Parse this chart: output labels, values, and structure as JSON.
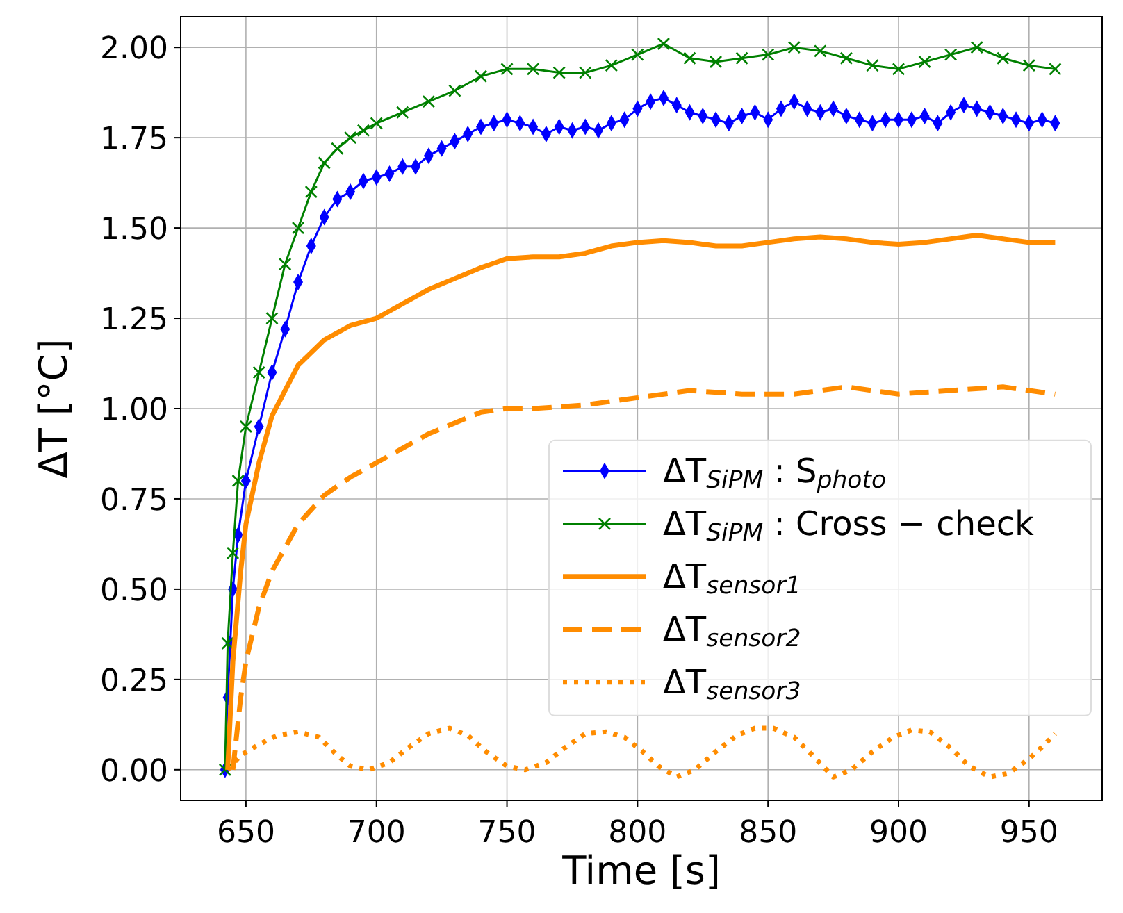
{
  "chart_data": {
    "type": "line",
    "xlabel": "Time [s]",
    "ylabel": "ΔT [°C]",
    "xlim": [
      625,
      978
    ],
    "ylim": [
      -0.085,
      2.085
    ],
    "xticks": [
      650,
      700,
      750,
      800,
      850,
      900,
      950
    ],
    "yticks": [
      {
        "value": 0,
        "label": "0.00"
      },
      {
        "value": 0.25,
        "label": "0.25"
      },
      {
        "value": 0.5,
        "label": "0.50"
      },
      {
        "value": 0.75,
        "label": "0.75"
      },
      {
        "value": 1,
        "label": "1.00"
      },
      {
        "value": 1.25,
        "label": "1.25"
      },
      {
        "value": 1.5,
        "label": "1.50"
      },
      {
        "value": 1.75,
        "label": "1.75"
      },
      {
        "value": 2,
        "label": "2.00"
      }
    ],
    "grid": true,
    "legend": "bottom right",
    "series": [
      {
        "name": "ΔT$_{SiPM}$ : S$_{photo}$",
        "color": "#0000ff",
        "marker": "diamond",
        "line_style": "solid",
        "x": [
          642,
          643,
          644,
          645,
          647,
          650,
          655,
          660,
          665,
          670,
          675,
          680,
          685,
          690,
          695,
          700,
          705,
          710,
          715,
          720,
          725,
          730,
          735,
          740,
          745,
          750,
          755,
          760,
          765,
          770,
          775,
          780,
          785,
          790,
          795,
          800,
          805,
          810,
          815,
          820,
          825,
          830,
          835,
          840,
          845,
          850,
          855,
          860,
          865,
          870,
          875,
          880,
          885,
          890,
          895,
          900,
          905,
          910,
          915,
          920,
          925,
          930,
          935,
          940,
          945,
          950,
          955,
          960
        ],
        "values": [
          0,
          0.2,
          0.35,
          0.5,
          0.65,
          0.8,
          0.95,
          1.1,
          1.22,
          1.35,
          1.45,
          1.53,
          1.58,
          1.6,
          1.63,
          1.64,
          1.65,
          1.67,
          1.67,
          1.7,
          1.72,
          1.74,
          1.76,
          1.78,
          1.79,
          1.8,
          1.79,
          1.78,
          1.76,
          1.78,
          1.77,
          1.78,
          1.77,
          1.79,
          1.8,
          1.83,
          1.85,
          1.86,
          1.84,
          1.82,
          1.81,
          1.8,
          1.79,
          1.81,
          1.82,
          1.8,
          1.83,
          1.85,
          1.83,
          1.82,
          1.83,
          1.81,
          1.8,
          1.79,
          1.8,
          1.8,
          1.8,
          1.81,
          1.79,
          1.82,
          1.84,
          1.83,
          1.82,
          1.81,
          1.8,
          1.79,
          1.8,
          1.79
        ]
      },
      {
        "name": "ΔT$_{SiPM}$ : Cross − check",
        "color": "#008000",
        "marker": "cross",
        "line_style": "solid",
        "x": [
          642,
          643,
          645,
          647,
          650,
          655,
          660,
          665,
          670,
          675,
          680,
          685,
          690,
          695,
          700,
          710,
          720,
          730,
          740,
          750,
          760,
          770,
          780,
          790,
          800,
          810,
          820,
          830,
          840,
          850,
          860,
          870,
          880,
          890,
          900,
          910,
          920,
          930,
          940,
          950,
          960
        ],
        "values": [
          0,
          0.35,
          0.6,
          0.8,
          0.95,
          1.1,
          1.25,
          1.4,
          1.5,
          1.6,
          1.68,
          1.72,
          1.75,
          1.77,
          1.79,
          1.82,
          1.85,
          1.88,
          1.92,
          1.94,
          1.94,
          1.93,
          1.93,
          1.95,
          1.98,
          2.01,
          1.97,
          1.96,
          1.97,
          1.98,
          2,
          1.99,
          1.97,
          1.95,
          1.94,
          1.96,
          1.98,
          2,
          1.97,
          1.95,
          1.94
        ]
      },
      {
        "name": "ΔT$_{sensor1}$",
        "color": "#ff8c00",
        "marker": "none",
        "line_style": "solid",
        "x": [
          643,
          645,
          648,
          650,
          655,
          660,
          670,
          680,
          690,
          700,
          710,
          720,
          730,
          740,
          750,
          760,
          770,
          780,
          790,
          800,
          810,
          820,
          830,
          840,
          850,
          860,
          870,
          880,
          890,
          900,
          910,
          920,
          930,
          940,
          950,
          960
        ],
        "values": [
          0,
          0.3,
          0.55,
          0.68,
          0.85,
          0.98,
          1.12,
          1.19,
          1.23,
          1.25,
          1.29,
          1.33,
          1.36,
          1.39,
          1.415,
          1.42,
          1.42,
          1.43,
          1.45,
          1.46,
          1.465,
          1.46,
          1.45,
          1.45,
          1.46,
          1.47,
          1.475,
          1.47,
          1.46,
          1.455,
          1.46,
          1.47,
          1.48,
          1.47,
          1.46,
          1.46
        ]
      },
      {
        "name": "ΔT$_{sensor2}$",
        "color": "#ff8c00",
        "marker": "none",
        "line_style": "dashed",
        "x": [
          645,
          648,
          650,
          655,
          660,
          670,
          680,
          690,
          700,
          710,
          720,
          730,
          740,
          750,
          760,
          780,
          800,
          820,
          840,
          860,
          880,
          900,
          920,
          940,
          960
        ],
        "values": [
          0,
          0.2,
          0.3,
          0.45,
          0.55,
          0.68,
          0.76,
          0.81,
          0.85,
          0.89,
          0.93,
          0.96,
          0.99,
          1,
          1,
          1.01,
          1.03,
          1.05,
          1.04,
          1.04,
          1.06,
          1.04,
          1.05,
          1.06,
          1.04
        ]
      },
      {
        "name": "ΔT$_{sensor3}$",
        "color": "#ff8c00",
        "marker": "none",
        "line_style": "dotted",
        "x": [
          643,
          648,
          655,
          662,
          670,
          678,
          685,
          690,
          697,
          705,
          712,
          720,
          728,
          735,
          742,
          750,
          757,
          765,
          772,
          780,
          788,
          795,
          802,
          808,
          815,
          822,
          830,
          838,
          845,
          852,
          860,
          867,
          875,
          882,
          890,
          898,
          905,
          912,
          920,
          927,
          935,
          942,
          950,
          956,
          960
        ],
        "values": [
          0,
          0.04,
          0.07,
          0.095,
          0.105,
          0.09,
          0.04,
          0.01,
          0,
          0.02,
          0.06,
          0.1,
          0.115,
          0.095,
          0.05,
          0.01,
          0,
          0.02,
          0.06,
          0.1,
          0.105,
          0.09,
          0.05,
          0.01,
          -0.02,
          0,
          0.05,
          0.095,
          0.115,
          0.115,
          0.09,
          0.04,
          -0.02,
          0,
          0.05,
          0.09,
          0.11,
          0.105,
          0.06,
          0.01,
          -0.02,
          -0.01,
          0.03,
          0.07,
          0.1
        ]
      }
    ]
  }
}
